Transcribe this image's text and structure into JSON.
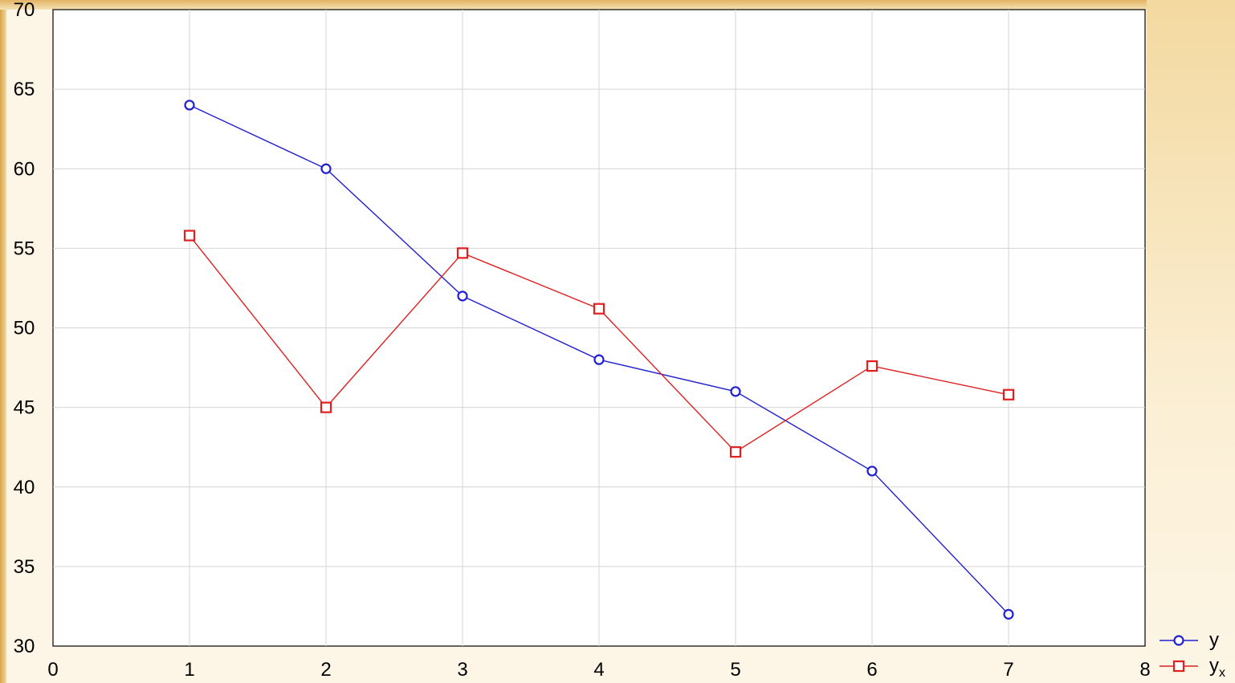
{
  "chart_data": {
    "type": "line",
    "xlim": [
      0,
      8
    ],
    "ylim": [
      30,
      70
    ],
    "x_ticks": [
      "0",
      "1",
      "2",
      "3",
      "4",
      "5",
      "6",
      "7",
      "8"
    ],
    "y_ticks": [
      "70",
      "65",
      "60",
      "55",
      "50",
      "45",
      "40",
      "35",
      "30"
    ],
    "grid": true,
    "legend_position": "bottom-right",
    "x": [
      1,
      2,
      3,
      4,
      5,
      6,
      7
    ],
    "series": [
      {
        "name": "y",
        "marker": "circle",
        "color": "#2020d0",
        "values": [
          64,
          60,
          52,
          48,
          46,
          41,
          32
        ]
      },
      {
        "name": "y",
        "name_subscript": "x",
        "marker": "square",
        "color": "#e02020",
        "values": [
          55.8,
          45,
          54.7,
          51.2,
          42.2,
          47.6,
          45.8
        ]
      }
    ]
  }
}
